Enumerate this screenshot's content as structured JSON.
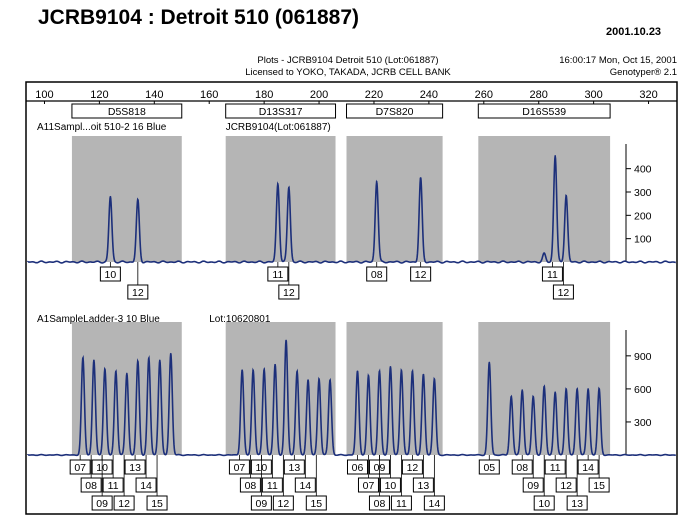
{
  "page": {
    "title": "JCRB9104 : Detroit 510 (061887)",
    "date": "2001.10.23"
  },
  "header": {
    "plots_line": "Plots - JCRB9104  Detroit  510  (Lot:061887)",
    "license_line": "Licensed to YOKO, TAKADA, JCRB CELL BANK",
    "time_line": "16:00:17  Mon,  Oct  15,  2001",
    "software_line": "Genotyper®  2.1"
  },
  "colors": {
    "trace": "#1c2f7a",
    "shade": "#b5b5b5",
    "frame": "#000000"
  },
  "chart_data": {
    "type": "line",
    "x_axis": {
      "min": 94,
      "max": 330,
      "ticks": [
        100,
        120,
        140,
        160,
        180,
        200,
        220,
        240,
        260,
        280,
        300,
        320
      ]
    },
    "markers": [
      {
        "label": "D5S818",
        "range": [
          110,
          150
        ]
      },
      {
        "label": "D13S317",
        "range": [
          166,
          206
        ]
      },
      {
        "label": "D7S820",
        "range": [
          210,
          245
        ]
      },
      {
        "label": "D16S539",
        "range": [
          258,
          306
        ]
      }
    ],
    "panels": [
      {
        "label": "A11Sampl...oit 510-2  16  Blue",
        "sublabel": "JCRB9104(Lot:061887)",
        "y_ticks": [
          100,
          200,
          300,
          400
        ],
        "y_max": 480,
        "peaks": [
          {
            "x": 124,
            "y": 280
          },
          {
            "x": 134,
            "y": 265
          },
          {
            "x": 185,
            "y": 335
          },
          {
            "x": 189,
            "y": 320
          },
          {
            "x": 221,
            "y": 345
          },
          {
            "x": 237,
            "y": 360
          },
          {
            "x": 282,
            "y": 35
          },
          {
            "x": 286,
            "y": 455
          },
          {
            "x": 290,
            "y": 285
          }
        ],
        "allele_rows": [
          [
            {
              "x": 124,
              "label": "10"
            },
            {
              "x": 185,
              "label": "11"
            },
            {
              "x": 221,
              "label": "08"
            },
            {
              "x": 237,
              "label": "12"
            },
            {
              "x": 285,
              "label": "11"
            }
          ],
          [
            {
              "x": 134,
              "label": "12"
            },
            {
              "x": 189,
              "label": "12"
            },
            {
              "x": 289,
              "label": "12"
            }
          ]
        ]
      },
      {
        "label": "A1SampleLadder-3      10  Blue",
        "sublabel": "Lot:10620801",
        "y_ticks": [
          300,
          600,
          900
        ],
        "y_max": 1080,
        "peaks": [
          {
            "x": 114,
            "y": 880
          },
          {
            "x": 118,
            "y": 860
          },
          {
            "x": 122,
            "y": 780
          },
          {
            "x": 126,
            "y": 760
          },
          {
            "x": 130,
            "y": 740
          },
          {
            "x": 134,
            "y": 850
          },
          {
            "x": 138,
            "y": 880
          },
          {
            "x": 142,
            "y": 860
          },
          {
            "x": 146,
            "y": 920
          },
          {
            "x": 172,
            "y": 770
          },
          {
            "x": 176,
            "y": 770
          },
          {
            "x": 180,
            "y": 780
          },
          {
            "x": 184,
            "y": 820
          },
          {
            "x": 188,
            "y": 1040
          },
          {
            "x": 192,
            "y": 760
          },
          {
            "x": 196,
            "y": 680
          },
          {
            "x": 200,
            "y": 690
          },
          {
            "x": 204,
            "y": 680
          },
          {
            "x": 214,
            "y": 760
          },
          {
            "x": 218,
            "y": 720
          },
          {
            "x": 222,
            "y": 760
          },
          {
            "x": 226,
            "y": 800
          },
          {
            "x": 230,
            "y": 770
          },
          {
            "x": 234,
            "y": 760
          },
          {
            "x": 238,
            "y": 730
          },
          {
            "x": 242,
            "y": 690
          },
          {
            "x": 262,
            "y": 840
          },
          {
            "x": 270,
            "y": 530
          },
          {
            "x": 274,
            "y": 590
          },
          {
            "x": 278,
            "y": 530
          },
          {
            "x": 282,
            "y": 620
          },
          {
            "x": 286,
            "y": 570
          },
          {
            "x": 290,
            "y": 600
          },
          {
            "x": 294,
            "y": 600
          },
          {
            "x": 298,
            "y": 600
          },
          {
            "x": 302,
            "y": 600
          }
        ],
        "allele_rows": [
          [
            {
              "x": 113,
              "label": "07"
            },
            {
              "x": 121,
              "label": "10"
            },
            {
              "x": 133,
              "label": "13"
            },
            {
              "x": 171,
              "label": "07"
            },
            {
              "x": 179,
              "label": "10"
            },
            {
              "x": 191,
              "label": "13"
            },
            {
              "x": 214,
              "label": "06"
            },
            {
              "x": 222,
              "label": "09"
            },
            {
              "x": 234,
              "label": "12"
            },
            {
              "x": 262,
              "label": "05"
            },
            {
              "x": 274,
              "label": "08"
            },
            {
              "x": 286,
              "label": "11"
            },
            {
              "x": 298,
              "label": "14"
            }
          ],
          [
            {
              "x": 117,
              "label": "08"
            },
            {
              "x": 125,
              "label": "11"
            },
            {
              "x": 137,
              "label": "14"
            },
            {
              "x": 175,
              "label": "08"
            },
            {
              "x": 183,
              "label": "11"
            },
            {
              "x": 195,
              "label": "14"
            },
            {
              "x": 218,
              "label": "07"
            },
            {
              "x": 226,
              "label": "10"
            },
            {
              "x": 238,
              "label": "13"
            },
            {
              "x": 278,
              "label": "09"
            },
            {
              "x": 290,
              "label": "12"
            },
            {
              "x": 302,
              "label": "15"
            }
          ],
          [
            {
              "x": 121,
              "label": "09"
            },
            {
              "x": 129,
              "label": "12"
            },
            {
              "x": 141,
              "label": "15"
            },
            {
              "x": 179,
              "label": "09"
            },
            {
              "x": 187,
              "label": "12"
            },
            {
              "x": 199,
              "label": "15"
            },
            {
              "x": 222,
              "label": "08"
            },
            {
              "x": 230,
              "label": "11"
            },
            {
              "x": 242,
              "label": "14"
            },
            {
              "x": 282,
              "label": "10"
            },
            {
              "x": 294,
              "label": "13"
            }
          ]
        ]
      }
    ]
  }
}
